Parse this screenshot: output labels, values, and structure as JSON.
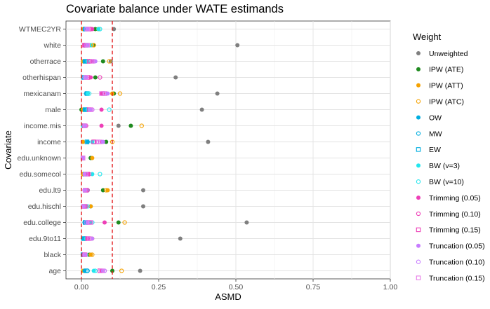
{
  "chart_data": {
    "type": "scatter",
    "title": "Covariate balance under WATE estimands",
    "xlabel": "ASMD",
    "ylabel": "Covariate",
    "xlim": [
      -0.05,
      1.0
    ],
    "xticks": [
      "0.00",
      "0.25",
      "0.50",
      "0.75",
      "1.00"
    ],
    "xtick_values": [
      0,
      0.25,
      0.5,
      0.75,
      1.0
    ],
    "reference_lines": [
      0,
      0.1
    ],
    "reference_line_color": "#e31a1c",
    "grid": true,
    "legend_position": "right",
    "legend_title": "Weight",
    "categories": [
      "WTMEC2YR",
      "white",
      "otherrace",
      "otherhispan",
      "mexicanam",
      "male",
      "income.mis",
      "income",
      "edu.unknown",
      "edu.somecol",
      "edu.lt9",
      "edu.hischl",
      "edu.college",
      "edu.9to11",
      "black",
      "age"
    ],
    "series": [
      {
        "name": "Unweighted",
        "color": "#7f7f7f",
        "marker": "circle-filled",
        "values": [
          0.105,
          0.505,
          0.095,
          0.305,
          0.44,
          0.39,
          0.12,
          0.41,
          0.03,
          0.02,
          0.2,
          0.2,
          0.535,
          0.32,
          0.03,
          0.19
        ]
      },
      {
        "name": "IPW (ATE)",
        "color": "#1f8a1f",
        "marker": "circle-filled",
        "values": [
          0.045,
          0.04,
          0.07,
          0.045,
          0.105,
          0.0,
          0.16,
          0.08,
          0.03,
          0.005,
          0.07,
          0.03,
          0.12,
          0.005,
          0.025,
          0.1
        ]
      },
      {
        "name": "IPW (ATT)",
        "color": "#f5a200",
        "marker": "circle-filled",
        "values": [
          0.005,
          0.035,
          0.005,
          0.005,
          0.1,
          0.005,
          0.005,
          0.005,
          0.035,
          0.005,
          0.085,
          0.03,
          0.01,
          0.035,
          0.03,
          0.005
        ]
      },
      {
        "name": "IPW (ATC)",
        "color": "#f5a200",
        "marker": "circle-open",
        "values": [
          0.055,
          0.04,
          0.09,
          0.005,
          0.125,
          0.005,
          0.195,
          0.1,
          0.005,
          0.005,
          0.08,
          0.005,
          0.14,
          0.005,
          0.035,
          0.13
        ]
      },
      {
        "name": "OW",
        "color": "#00aee0",
        "marker": "circle-filled",
        "values": [
          0.01,
          0.01,
          0.01,
          0.005,
          0.015,
          0.01,
          0.005,
          0.02,
          0.005,
          0.01,
          0.01,
          0.005,
          0.01,
          0.005,
          0.005,
          0.01
        ]
      },
      {
        "name": "MW",
        "color": "#00aee0",
        "marker": "circle-open",
        "values": [
          0.015,
          0.02,
          0.015,
          0.01,
          0.02,
          0.015,
          0.01,
          0.02,
          0.005,
          0.015,
          0.015,
          0.01,
          0.015,
          0.01,
          0.005,
          0.02
        ]
      },
      {
        "name": "EW",
        "color": "#00aee0",
        "marker": "square-open",
        "values": [
          0.012,
          0.015,
          0.012,
          0.008,
          0.018,
          0.012,
          0.008,
          0.018,
          0.005,
          0.012,
          0.012,
          0.008,
          0.012,
          0.008,
          0.005,
          0.015
        ]
      },
      {
        "name": "BW (v=3)",
        "color": "#23e6ee",
        "marker": "circle-filled",
        "values": [
          0.055,
          0.025,
          0.02,
          0.01,
          0.02,
          0.02,
          0.005,
          0.035,
          0.005,
          0.035,
          0.02,
          0.015,
          0.03,
          0.015,
          0.01,
          0.04
        ]
      },
      {
        "name": "BW (v=10)",
        "color": "#23e6ee",
        "marker": "circle-open",
        "values": [
          0.06,
          0.03,
          0.025,
          0.015,
          0.025,
          0.09,
          0.01,
          0.04,
          0.005,
          0.06,
          0.02,
          0.02,
          0.035,
          0.02,
          0.015,
          0.045
        ]
      },
      {
        "name": "Trimming (0.05)",
        "color": "#ee3fb7",
        "marker": "circle-filled",
        "values": [
          0.035,
          0.01,
          0.035,
          0.03,
          0.065,
          0.065,
          0.065,
          0.065,
          0.005,
          0.02,
          0.015,
          0.01,
          0.075,
          0.02,
          0.01,
          0.065
        ]
      },
      {
        "name": "Trimming (0.10)",
        "color": "#ee3fb7",
        "marker": "circle-open",
        "values": [
          0.03,
          0.015,
          0.03,
          0.06,
          0.08,
          0.035,
          0.015,
          0.05,
          0.005,
          0.025,
          0.02,
          0.015,
          0.03,
          0.025,
          0.01,
          0.075
        ]
      },
      {
        "name": "Trimming (0.15)",
        "color": "#ee3fb7",
        "marker": "square-open",
        "values": [
          0.025,
          0.01,
          0.025,
          0.02,
          0.07,
          0.025,
          0.01,
          0.04,
          0.005,
          0.02,
          0.015,
          0.01,
          0.025,
          0.02,
          0.01,
          0.06
        ]
      },
      {
        "name": "Truncation (0.05)",
        "color": "#c77cff",
        "marker": "circle-filled",
        "values": [
          0.02,
          0.02,
          0.045,
          0.015,
          0.085,
          0.03,
          0.01,
          0.07,
          0.005,
          0.01,
          0.01,
          0.005,
          0.02,
          0.035,
          0.01,
          0.07
        ]
      },
      {
        "name": "Truncation (0.10)",
        "color": "#c77cff",
        "marker": "circle-open",
        "values": [
          0.015,
          0.015,
          0.04,
          0.01,
          0.075,
          0.035,
          0.01,
          0.06,
          0.005,
          0.015,
          0.01,
          0.005,
          0.015,
          0.03,
          0.01,
          0.075
        ]
      },
      {
        "name": "Truncation (0.15)",
        "color": "#e87de8",
        "marker": "square-open",
        "values": [
          0.02,
          0.02,
          0.035,
          0.015,
          0.065,
          0.03,
          0.012,
          0.055,
          0.005,
          0.015,
          0.012,
          0.008,
          0.03,
          0.025,
          0.012,
          0.065
        ]
      }
    ]
  }
}
